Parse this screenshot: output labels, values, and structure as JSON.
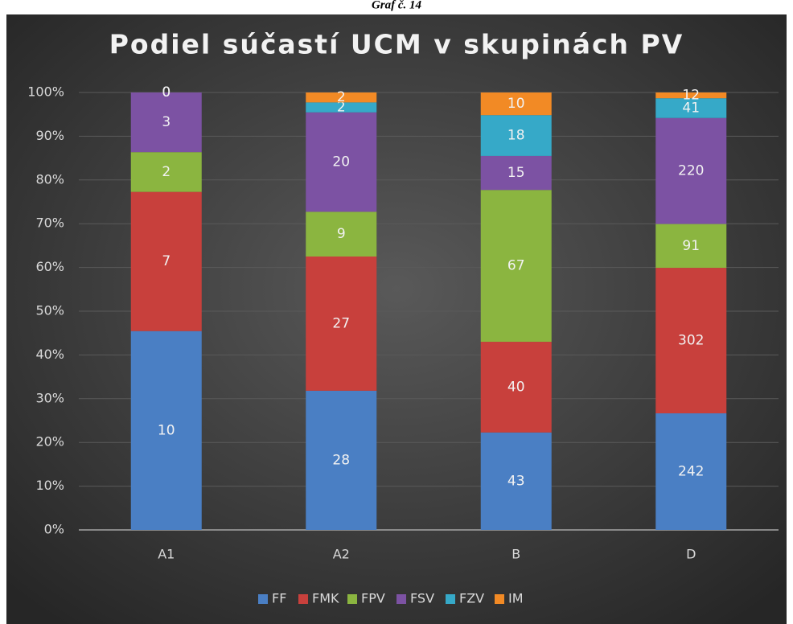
{
  "caption": "Graf č. 14",
  "chart_data": {
    "type": "bar",
    "stacking": "percent",
    "title": "Podiel súčastí UCM v skupinách PV",
    "categories": [
      "A1",
      "A2",
      "B",
      "D"
    ],
    "series": [
      {
        "name": "FF",
        "color": "#4a7fc4",
        "values": [
          10,
          28,
          43,
          242
        ]
      },
      {
        "name": "FMK",
        "color": "#c8403c",
        "values": [
          7,
          27,
          40,
          302
        ]
      },
      {
        "name": "FPV",
        "color": "#8bb540",
        "values": [
          2,
          9,
          67,
          91
        ]
      },
      {
        "name": "FSV",
        "color": "#7c52a3",
        "values": [
          3,
          20,
          15,
          220
        ]
      },
      {
        "name": "FZV",
        "color": "#36a9c8",
        "values": [
          0,
          2,
          18,
          41
        ]
      },
      {
        "name": "IM",
        "color": "#f28a25",
        "values": [
          0,
          2,
          10,
          12
        ]
      }
    ],
    "ylim": [
      0,
      100
    ],
    "yticks": [
      {
        "value": 0,
        "label": "0%"
      },
      {
        "value": 10,
        "label": "10%"
      },
      {
        "value": 20,
        "label": "20%"
      },
      {
        "value": 30,
        "label": "30%"
      },
      {
        "value": 40,
        "label": "40%"
      },
      {
        "value": 50,
        "label": "50%"
      },
      {
        "value": 60,
        "label": "60%"
      },
      {
        "value": 70,
        "label": "70%"
      },
      {
        "value": 80,
        "label": "80%"
      },
      {
        "value": 90,
        "label": "90%"
      },
      {
        "value": 100,
        "label": "100%"
      }
    ],
    "grid": true,
    "legend": "bottom"
  }
}
